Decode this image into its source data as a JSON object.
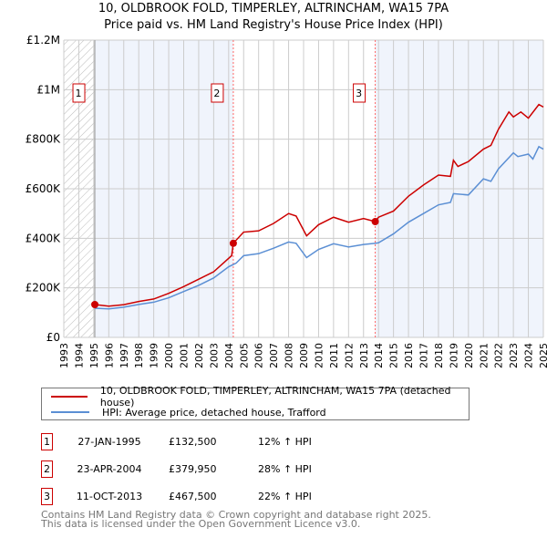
{
  "title_line1": "10, OLDBROOK FOLD, TIMPERLEY, ALTRINCHAM, WA15 7PA",
  "title_line2": "Price paid vs. HM Land Registry's House Price Index (HPI)",
  "chart_data": {
    "type": "line",
    "title": "10, OLDBROOK FOLD, TIMPERLEY, ALTRINCHAM, WA15 7PA — Price paid vs. HM Land Registry's House Price Index (HPI)",
    "xlim": [
      1993,
      2025
    ],
    "ylim": [
      0,
      1200000
    ],
    "yticks": [
      {
        "v": 0,
        "label": "£0"
      },
      {
        "v": 200000,
        "label": "£200K"
      },
      {
        "v": 400000,
        "label": "£400K"
      },
      {
        "v": 600000,
        "label": "£600K"
      },
      {
        "v": 800000,
        "label": "£800K"
      },
      {
        "v": 1000000,
        "label": "£1M"
      },
      {
        "v": 1200000,
        "label": "£1.2M"
      }
    ],
    "xticks": [
      "1993",
      "1994",
      "1995",
      "1996",
      "1997",
      "1998",
      "1999",
      "2000",
      "2001",
      "2002",
      "2003",
      "2004",
      "2005",
      "2006",
      "2007",
      "2008",
      "2009",
      "2010",
      "2011",
      "2012",
      "2013",
      "2014",
      "2015",
      "2016",
      "2017",
      "2018",
      "2019",
      "2020",
      "2021",
      "2022",
      "2023",
      "2024",
      "2025"
    ],
    "grid": true,
    "series": [
      {
        "name": "10, OLDBROOK FOLD, TIMPERLEY, ALTRINCHAM, WA15 7PA (detached house)",
        "color": "#cc0000",
        "points": [
          [
            1995.07,
            132500
          ],
          [
            1996,
            126000
          ],
          [
            1997,
            132000
          ],
          [
            1998,
            145000
          ],
          [
            1999,
            155000
          ],
          [
            2000,
            178000
          ],
          [
            2001,
            205000
          ],
          [
            2002,
            235000
          ],
          [
            2003,
            265000
          ],
          [
            2004.2,
            330000
          ],
          [
            2004.31,
            379950
          ],
          [
            2005,
            425000
          ],
          [
            2006,
            430000
          ],
          [
            2007,
            460000
          ],
          [
            2008,
            500000
          ],
          [
            2008.5,
            490000
          ],
          [
            2009.2,
            410000
          ],
          [
            2010,
            455000
          ],
          [
            2011,
            485000
          ],
          [
            2012,
            465000
          ],
          [
            2013,
            480000
          ],
          [
            2013.78,
            467500
          ],
          [
            2014,
            485000
          ],
          [
            2015,
            510000
          ],
          [
            2016,
            570000
          ],
          [
            2017,
            615000
          ],
          [
            2018,
            655000
          ],
          [
            2018.8,
            650000
          ],
          [
            2019,
            715000
          ],
          [
            2019.3,
            690000
          ],
          [
            2020,
            710000
          ],
          [
            2021,
            760000
          ],
          [
            2021.5,
            775000
          ],
          [
            2022,
            840000
          ],
          [
            2022.7,
            910000
          ],
          [
            2023,
            890000
          ],
          [
            2023.5,
            910000
          ],
          [
            2024,
            885000
          ],
          [
            2024.7,
            940000
          ],
          [
            2025,
            930000
          ]
        ]
      },
      {
        "name": "HPI: Average price, detached house, Trafford",
        "color": "#5b8fd4",
        "points": [
          [
            1995.07,
            118000
          ],
          [
            1996,
            115000
          ],
          [
            1997,
            122000
          ],
          [
            1998,
            133000
          ],
          [
            1999,
            142000
          ],
          [
            2000,
            160000
          ],
          [
            2001,
            185000
          ],
          [
            2002,
            210000
          ],
          [
            2003,
            240000
          ],
          [
            2004,
            285000
          ],
          [
            2004.5,
            300000
          ],
          [
            2005,
            330000
          ],
          [
            2006,
            338000
          ],
          [
            2007,
            360000
          ],
          [
            2008,
            385000
          ],
          [
            2008.5,
            380000
          ],
          [
            2009.2,
            322000
          ],
          [
            2010,
            355000
          ],
          [
            2011,
            378000
          ],
          [
            2012,
            365000
          ],
          [
            2013,
            375000
          ],
          [
            2013.8,
            380000
          ],
          [
            2014,
            382000
          ],
          [
            2015,
            418000
          ],
          [
            2016,
            465000
          ],
          [
            2017,
            500000
          ],
          [
            2018,
            535000
          ],
          [
            2018.8,
            545000
          ],
          [
            2019,
            580000
          ],
          [
            2020,
            575000
          ],
          [
            2021,
            640000
          ],
          [
            2021.5,
            630000
          ],
          [
            2022,
            680000
          ],
          [
            2023,
            745000
          ],
          [
            2023.3,
            730000
          ],
          [
            2024,
            740000
          ],
          [
            2024.3,
            720000
          ],
          [
            2024.7,
            770000
          ],
          [
            2025,
            760000
          ]
        ]
      }
    ],
    "sales": [
      {
        "label": "1",
        "x": 1995.07,
        "y": 132500
      },
      {
        "label": "2",
        "x": 2004.31,
        "y": 379950
      },
      {
        "label": "3",
        "x": 2013.78,
        "y": 467500
      }
    ]
  },
  "legend": {
    "property": "10, OLDBROOK FOLD, TIMPERLEY, ALTRINCHAM, WA15 7PA (detached house)",
    "hpi": "HPI: Average price, detached house, Trafford"
  },
  "transactions": [
    {
      "num": "1",
      "date": "27-JAN-1995",
      "price": "£132,500",
      "hpi": "12% ↑ HPI"
    },
    {
      "num": "2",
      "date": "23-APR-2004",
      "price": "£379,950",
      "hpi": "28% ↑ HPI"
    },
    {
      "num": "3",
      "date": "11-OCT-2013",
      "price": "£467,500",
      "hpi": "22% ↑ HPI"
    }
  ],
  "footer": {
    "line1": "Contains HM Land Registry data © Crown copyright and database right 2025.",
    "line2": "This data is licensed under the Open Government Licence v3.0."
  }
}
